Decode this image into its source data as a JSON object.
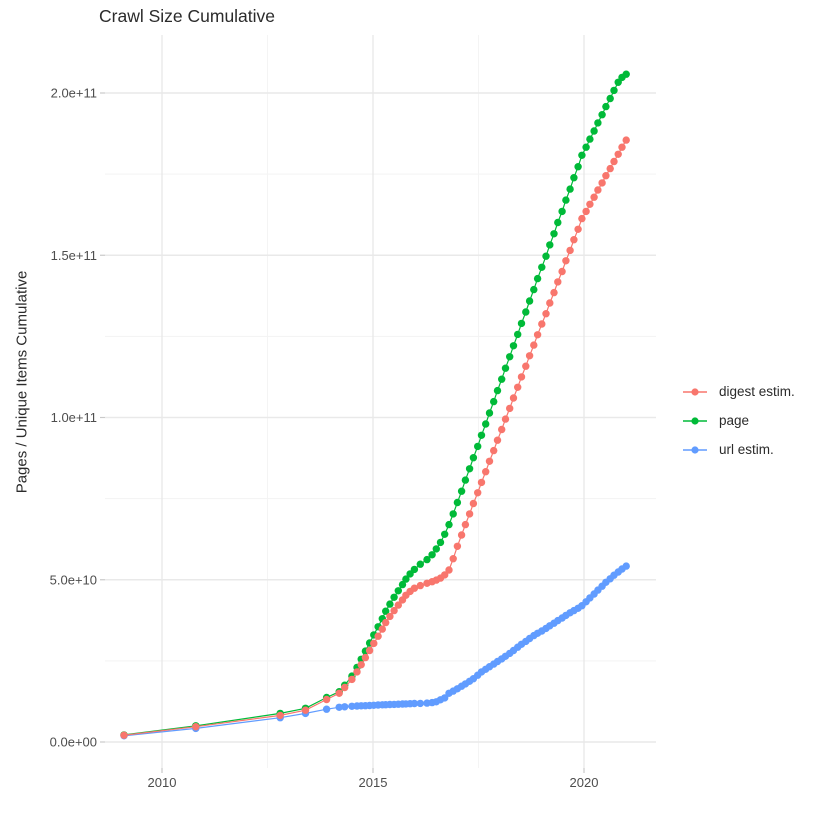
{
  "title": "Crawl Size Cumulative",
  "y_axis": {
    "label": "Pages / Unique Items Cumulative",
    "ticks": [
      "0.0e+00",
      "5.0e+10",
      "1.0e+11",
      "1.5e+11",
      "2.0e+11"
    ],
    "tick_values_billions": [
      0,
      50,
      100,
      150,
      200
    ]
  },
  "x_axis": {
    "ticks": [
      "2010",
      "2015",
      "2020"
    ],
    "tick_values": [
      2010,
      2015,
      2020
    ]
  },
  "legend": {
    "items": [
      {
        "label": "digest estim.",
        "color": "#F8766D"
      },
      {
        "label": "page",
        "color": "#00BA38"
      },
      {
        "label": "url estim.",
        "color": "#619CFF"
      }
    ]
  },
  "colors": {
    "background": "#ffffff",
    "grid_major": "#e9e9e9",
    "grid_minor": "#f3f3f3",
    "tick_mark": "#c9c9c9",
    "axis_text": "#4d4d4d",
    "title_text": "#2b2b2b"
  },
  "chart_data": {
    "type": "scatter",
    "title": "Crawl Size Cumulative",
    "xlabel": "",
    "ylabel": "Pages / Unique Items Cumulative",
    "x_unit": "year",
    "y_unit": "count (billions, 1e9)",
    "xlim": [
      2008.5,
      2021.7
    ],
    "ylim_billions": [
      -9,
      218
    ],
    "grid": "on",
    "legend_position": "right",
    "marker": "point-with-line",
    "series": [
      {
        "name": "digest estim.",
        "color": "#F8766D",
        "points": [
          [
            2009.1,
            2.1
          ],
          [
            2010.8,
            4.7
          ],
          [
            2012.8,
            8.2
          ],
          [
            2013.4,
            9.8
          ],
          [
            2013.9,
            13.1
          ],
          [
            2014.2,
            15.0
          ],
          [
            2014.33,
            16.8
          ],
          [
            2014.5,
            19.3
          ],
          [
            2014.62,
            21.6
          ],
          [
            2014.72,
            23.8
          ],
          [
            2014.82,
            26.0
          ],
          [
            2014.92,
            28.2
          ],
          [
            2015.02,
            30.4
          ],
          [
            2015.12,
            32.6
          ],
          [
            2015.22,
            34.8
          ],
          [
            2015.3,
            36.8
          ],
          [
            2015.4,
            38.7
          ],
          [
            2015.5,
            40.5
          ],
          [
            2015.6,
            42.2
          ],
          [
            2015.7,
            43.8
          ],
          [
            2015.78,
            45.2
          ],
          [
            2015.88,
            46.4
          ],
          [
            2015.98,
            47.4
          ],
          [
            2016.12,
            48.2
          ],
          [
            2016.28,
            48.9
          ],
          [
            2016.4,
            49.4
          ],
          [
            2016.5,
            49.9
          ],
          [
            2016.6,
            50.5
          ],
          [
            2016.7,
            51.5
          ],
          [
            2016.8,
            53.0
          ],
          [
            2016.9,
            56.5
          ],
          [
            2017.0,
            60.3
          ],
          [
            2017.1,
            63.8
          ],
          [
            2017.19,
            67.0
          ],
          [
            2017.29,
            70.3
          ],
          [
            2017.38,
            73.5
          ],
          [
            2017.48,
            76.8
          ],
          [
            2017.57,
            80.0
          ],
          [
            2017.67,
            83.3
          ],
          [
            2017.76,
            86.5
          ],
          [
            2017.86,
            89.8
          ],
          [
            2017.95,
            93.0
          ],
          [
            2018.05,
            96.3
          ],
          [
            2018.14,
            99.5
          ],
          [
            2018.24,
            102.8
          ],
          [
            2018.33,
            106.0
          ],
          [
            2018.43,
            109.3
          ],
          [
            2018.52,
            112.5
          ],
          [
            2018.62,
            115.8
          ],
          [
            2018.71,
            119.0
          ],
          [
            2018.81,
            122.3
          ],
          [
            2018.9,
            125.5
          ],
          [
            2019.0,
            128.8
          ],
          [
            2019.1,
            132.0
          ],
          [
            2019.19,
            135.3
          ],
          [
            2019.29,
            138.5
          ],
          [
            2019.38,
            141.8
          ],
          [
            2019.48,
            145.0
          ],
          [
            2019.57,
            148.3
          ],
          [
            2019.67,
            151.5
          ],
          [
            2019.76,
            154.8
          ],
          [
            2019.86,
            158.0
          ],
          [
            2019.95,
            161.3
          ],
          [
            2020.05,
            163.5
          ],
          [
            2020.14,
            165.7
          ],
          [
            2020.24,
            167.9
          ],
          [
            2020.33,
            170.1
          ],
          [
            2020.43,
            172.3
          ],
          [
            2020.52,
            174.5
          ],
          [
            2020.62,
            176.7
          ],
          [
            2020.71,
            178.9
          ],
          [
            2020.81,
            181.1
          ],
          [
            2020.9,
            183.3
          ],
          [
            2021.0,
            185.5
          ]
        ]
      },
      {
        "name": "page",
        "color": "#00BA38",
        "points": [
          [
            2009.1,
            2.2
          ],
          [
            2010.8,
            5.0
          ],
          [
            2012.8,
            8.8
          ],
          [
            2013.4,
            10.4
          ],
          [
            2013.9,
            13.7
          ],
          [
            2014.2,
            15.5
          ],
          [
            2014.33,
            17.5
          ],
          [
            2014.5,
            20.3
          ],
          [
            2014.62,
            23.0
          ],
          [
            2014.72,
            25.5
          ],
          [
            2014.82,
            28.0
          ],
          [
            2014.92,
            30.5
          ],
          [
            2015.02,
            33.0
          ],
          [
            2015.12,
            35.5
          ],
          [
            2015.22,
            38.0
          ],
          [
            2015.3,
            40.3
          ],
          [
            2015.4,
            42.5
          ],
          [
            2015.5,
            44.6
          ],
          [
            2015.6,
            46.6
          ],
          [
            2015.7,
            48.5
          ],
          [
            2015.78,
            50.2
          ],
          [
            2015.88,
            51.8
          ],
          [
            2015.98,
            53.2
          ],
          [
            2016.12,
            54.8
          ],
          [
            2016.28,
            56.2
          ],
          [
            2016.4,
            57.7
          ],
          [
            2016.5,
            59.5
          ],
          [
            2016.6,
            61.5
          ],
          [
            2016.7,
            64.0
          ],
          [
            2016.8,
            67.0
          ],
          [
            2016.9,
            70.3
          ],
          [
            2017.0,
            73.8
          ],
          [
            2017.1,
            77.3
          ],
          [
            2017.19,
            80.7
          ],
          [
            2017.29,
            84.2
          ],
          [
            2017.38,
            87.6
          ],
          [
            2017.48,
            91.1
          ],
          [
            2017.57,
            94.5
          ],
          [
            2017.67,
            98.0
          ],
          [
            2017.76,
            101.4
          ],
          [
            2017.86,
            104.9
          ],
          [
            2017.95,
            108.3
          ],
          [
            2018.05,
            111.8
          ],
          [
            2018.14,
            115.2
          ],
          [
            2018.24,
            118.7
          ],
          [
            2018.33,
            122.1
          ],
          [
            2018.43,
            125.6
          ],
          [
            2018.52,
            129.0
          ],
          [
            2018.62,
            132.5
          ],
          [
            2018.71,
            135.9
          ],
          [
            2018.81,
            139.4
          ],
          [
            2018.9,
            142.8
          ],
          [
            2019.0,
            146.3
          ],
          [
            2019.1,
            149.7
          ],
          [
            2019.19,
            153.2
          ],
          [
            2019.29,
            156.6
          ],
          [
            2019.38,
            160.1
          ],
          [
            2019.48,
            163.5
          ],
          [
            2019.57,
            167.0
          ],
          [
            2019.67,
            170.4
          ],
          [
            2019.76,
            173.9
          ],
          [
            2019.86,
            177.3
          ],
          [
            2019.95,
            180.8
          ],
          [
            2020.05,
            183.3
          ],
          [
            2020.14,
            185.8
          ],
          [
            2020.24,
            188.3
          ],
          [
            2020.33,
            190.8
          ],
          [
            2020.43,
            193.3
          ],
          [
            2020.52,
            195.8
          ],
          [
            2020.62,
            198.3
          ],
          [
            2020.71,
            200.8
          ],
          [
            2020.81,
            203.3
          ],
          [
            2020.9,
            204.8
          ],
          [
            2021.0,
            205.8
          ]
        ]
      },
      {
        "name": "url estim.",
        "color": "#619CFF",
        "points": [
          [
            2009.1,
            1.9
          ],
          [
            2010.8,
            4.2
          ],
          [
            2012.8,
            7.5
          ],
          [
            2013.4,
            8.8
          ],
          [
            2013.9,
            10.1
          ],
          [
            2014.2,
            10.7
          ],
          [
            2014.33,
            10.85
          ],
          [
            2014.5,
            11.0
          ],
          [
            2014.62,
            11.1
          ],
          [
            2014.72,
            11.15
          ],
          [
            2014.82,
            11.2
          ],
          [
            2014.92,
            11.25
          ],
          [
            2015.02,
            11.3
          ],
          [
            2015.12,
            11.4
          ],
          [
            2015.22,
            11.45
          ],
          [
            2015.3,
            11.5
          ],
          [
            2015.4,
            11.55
          ],
          [
            2015.5,
            11.6
          ],
          [
            2015.6,
            11.65
          ],
          [
            2015.7,
            11.7
          ],
          [
            2015.78,
            11.75
          ],
          [
            2015.88,
            11.8
          ],
          [
            2015.98,
            11.85
          ],
          [
            2016.12,
            11.9
          ],
          [
            2016.28,
            12.0
          ],
          [
            2016.4,
            12.15
          ],
          [
            2016.5,
            12.4
          ],
          [
            2016.6,
            13.0
          ],
          [
            2016.7,
            13.6
          ],
          [
            2016.8,
            15.0
          ],
          [
            2016.9,
            15.7
          ],
          [
            2017.0,
            16.4
          ],
          [
            2017.1,
            17.2
          ],
          [
            2017.19,
            17.9
          ],
          [
            2017.29,
            18.7
          ],
          [
            2017.38,
            19.5
          ],
          [
            2017.48,
            20.6
          ],
          [
            2017.57,
            21.6
          ],
          [
            2017.67,
            22.4
          ],
          [
            2017.76,
            23.2
          ],
          [
            2017.86,
            24.0
          ],
          [
            2017.95,
            24.8
          ],
          [
            2018.05,
            25.6
          ],
          [
            2018.14,
            26.4
          ],
          [
            2018.24,
            27.3
          ],
          [
            2018.33,
            28.2
          ],
          [
            2018.43,
            29.2
          ],
          [
            2018.52,
            30.1
          ],
          [
            2018.62,
            31.0
          ],
          [
            2018.71,
            31.9
          ],
          [
            2018.81,
            32.8
          ],
          [
            2018.9,
            33.5
          ],
          [
            2019.0,
            34.2
          ],
          [
            2019.1,
            35.0
          ],
          [
            2019.19,
            35.8
          ],
          [
            2019.29,
            36.6
          ],
          [
            2019.38,
            37.4
          ],
          [
            2019.48,
            38.2
          ],
          [
            2019.57,
            39.0
          ],
          [
            2019.67,
            39.8
          ],
          [
            2019.76,
            40.5
          ],
          [
            2019.86,
            41.2
          ],
          [
            2019.95,
            42.0
          ],
          [
            2020.05,
            43.2
          ],
          [
            2020.14,
            44.4
          ],
          [
            2020.24,
            45.6
          ],
          [
            2020.33,
            46.8
          ],
          [
            2020.43,
            48.0
          ],
          [
            2020.52,
            49.2
          ],
          [
            2020.62,
            50.3
          ],
          [
            2020.71,
            51.4
          ],
          [
            2020.81,
            52.4
          ],
          [
            2020.9,
            53.3
          ],
          [
            2021.0,
            54.2
          ]
        ]
      }
    ]
  }
}
